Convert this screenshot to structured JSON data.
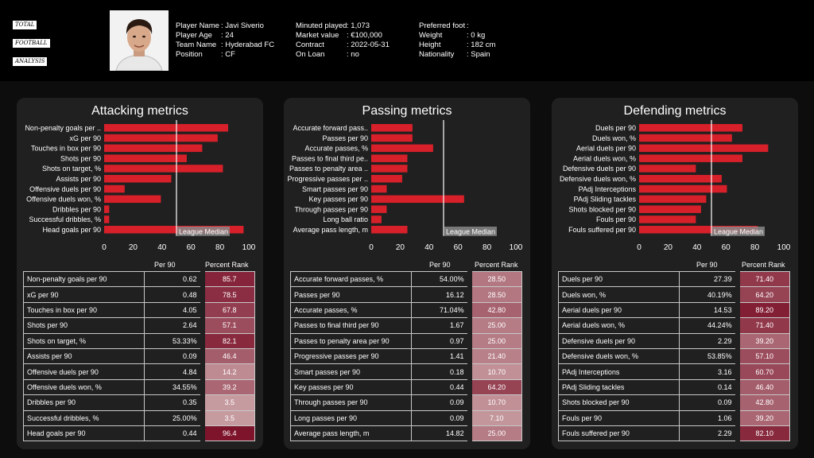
{
  "header": {
    "logo_lines": [
      "TOTAL",
      "FOOTBALL",
      "ANALYSIS"
    ],
    "col1": [
      {
        "k": "Player Name",
        "v": "Javi Siverio"
      },
      {
        "k": "Player Age",
        "v": "24"
      },
      {
        "k": "Team Name",
        "v": "Hyderabad FC"
      },
      {
        "k": "Position",
        "v": "CF"
      }
    ],
    "col2": [
      {
        "k": "Minuted played",
        "v": "1,073"
      },
      {
        "k": "Market value",
        "v": "€100,000"
      },
      {
        "k": "Contract",
        "v": "2022-05-31"
      },
      {
        "k": "On Loan",
        "v": "no"
      }
    ],
    "col3": [
      {
        "k": "Preferred foot",
        "v": ""
      },
      {
        "k": "Weight",
        "v": "0 kg"
      },
      {
        "k": "Height",
        "v": "182 cm"
      },
      {
        "k": "Nationality",
        "v": "Spain"
      }
    ]
  },
  "table_headers": {
    "per90": "Per 90",
    "rank": "Percent Rank"
  },
  "colors": {
    "bar": "#d7202a",
    "median": "#ffffff",
    "rank_high": "#7a0f28",
    "rank_low": "#c9a0a4"
  },
  "chart_data": [
    {
      "type": "bar",
      "orientation": "horizontal",
      "title": "Attacking metrics",
      "categories": [
        "Non-penalty goals per ..",
        "xG per 90",
        "Touches in box per 90",
        "Shots per 90",
        "Shots on target, %",
        "Assists per 90",
        "Offensive duels per 90",
        "Offensive duels won, %",
        "Dribbles per 90",
        "Successful dribbles, %",
        "Head goals per 90"
      ],
      "values": [
        85.7,
        78.5,
        67.8,
        57.1,
        82.1,
        46.4,
        14.2,
        39.2,
        3.5,
        3.5,
        96.4
      ],
      "median": 50,
      "median_label": "League Median",
      "xlim": [
        0,
        100
      ],
      "xticks": [
        "0",
        "20",
        "40",
        "60",
        "80",
        "100"
      ],
      "table": {
        "names": [
          "Non-penalty goals per 90",
          "xG per 90",
          "Touches in box per 90",
          "Shots per 90",
          "Shots on target, %",
          "Assists per 90",
          "Offensive duels per 90",
          "Offensive duels won, %",
          "Dribbles per 90",
          "Successful dribbles, %",
          "Head goals per 90"
        ],
        "per90": [
          "0.62",
          "0.48",
          "4.05",
          "2.64",
          "53.33%",
          "0.09",
          "4.84",
          "34.55%",
          "0.35",
          "25.00%",
          "0.44"
        ],
        "rank": [
          "85.7",
          "78.5",
          "67.8",
          "57.1",
          "82.1",
          "46.4",
          "14.2",
          "39.2",
          "3.5",
          "3.5",
          "96.4"
        ]
      }
    },
    {
      "type": "bar",
      "orientation": "horizontal",
      "title": "Passing metrics",
      "categories": [
        "Accurate forward pass..",
        "Passes per 90",
        "Accurate passes, %",
        "Passes to final third pe..",
        "Passes to penalty area ..",
        "Progressive passes per ..",
        "Smart passes per 90",
        "Key passes per 90",
        "Through passes per 90",
        "Long ball ratio",
        "Average pass length, m"
      ],
      "values": [
        28.5,
        28.5,
        42.8,
        25.0,
        25.0,
        21.4,
        10.7,
        64.2,
        10.7,
        7.1,
        25.0
      ],
      "median": 50,
      "median_label": "League Median",
      "xlim": [
        0,
        100
      ],
      "xticks": [
        "0",
        "20",
        "40",
        "60",
        "80",
        "100"
      ],
      "table": {
        "names": [
          "Accurate forward passes, %",
          "Passes per 90",
          "Accurate passes, %",
          "Passes to final third per 90",
          "Passes to penalty area per 90",
          "Progressive passes per 90",
          "Smart passes per 90",
          "Key passes per 90",
          "Through passes per 90",
          "Long passes per 90",
          "Average pass length, m"
        ],
        "per90": [
          "54.00%",
          "16.12",
          "71.04%",
          "1.67",
          "0.97",
          "1.41",
          "0.18",
          "0.44",
          "0.09",
          "0.09",
          "14.82"
        ],
        "rank": [
          "28.50",
          "28.50",
          "42.80",
          "25.00",
          "25.00",
          "21.40",
          "10.70",
          "64.20",
          "10.70",
          "7.10",
          "25.00"
        ]
      }
    },
    {
      "type": "bar",
      "orientation": "horizontal",
      "title": "Defending metrics",
      "categories": [
        "Duels per 90",
        "Duels won, %",
        "Aerial duels per 90",
        "Aerial duels won, %",
        "Defensive duels per 90",
        "Defensive duels won, %",
        "PAdj Interceptions",
        "PAdj Sliding tackles",
        "Shots blocked per 90",
        "Fouls per 90",
        "Fouls suffered per 90"
      ],
      "values": [
        71.4,
        64.2,
        89.2,
        71.4,
        39.2,
        57.1,
        60.7,
        46.4,
        42.8,
        39.2,
        82.1
      ],
      "median": 50,
      "median_label": "League Median",
      "xlim": [
        0,
        100
      ],
      "xticks": [
        "0",
        "20",
        "40",
        "60",
        "80",
        "100"
      ],
      "table": {
        "names": [
          "Duels per 90",
          "Duels won, %",
          "Aerial duels per 90",
          "Aerial duels won, %",
          "Defensive duels per 90",
          "Defensive duels won, %",
          "PAdj Interceptions",
          "PAdj Sliding tackles",
          "Shots blocked per 90",
          "Fouls per 90",
          "Fouls suffered per 90"
        ],
        "per90": [
          "27.39",
          "40.19%",
          "14.53",
          "44.24%",
          "2.29",
          "53.85%",
          "3.16",
          "0.14",
          "0.09",
          "1.06",
          "2.29"
        ],
        "rank": [
          "71.40",
          "64.20",
          "89.20",
          "71.40",
          "39.20",
          "57.10",
          "60.70",
          "46.40",
          "42.80",
          "39.20",
          "82.10"
        ]
      }
    }
  ]
}
